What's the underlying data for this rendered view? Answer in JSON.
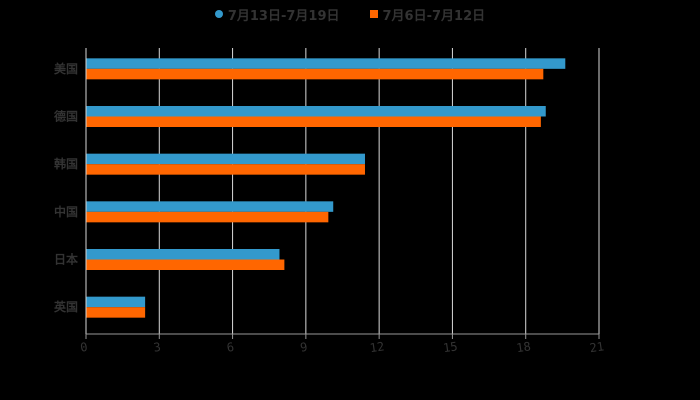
{
  "chart_data": {
    "type": "bar",
    "orientation": "horizontal",
    "title": "",
    "xlabel": "",
    "ylabel": "",
    "categories": [
      "美国",
      "德国",
      "韩国",
      "中国",
      "日本",
      "英国"
    ],
    "series": [
      {
        "name": "7月13日-7月19日",
        "color": "#3399cc",
        "values": [
          19.6,
          18.8,
          11.4,
          10.1,
          7.9,
          2.4
        ]
      },
      {
        "name": "7月6日-7月12日",
        "color": "#ff6600",
        "values": [
          18.7,
          18.6,
          11.4,
          9.9,
          8.1,
          2.4
        ]
      }
    ],
    "xlim": [
      0,
      21
    ],
    "xticks": [
      0,
      3,
      6,
      9,
      12,
      15,
      18,
      21
    ],
    "grid": true,
    "legend_position": "top"
  },
  "legend": {
    "items": [
      {
        "label": "7月13日-7月19日",
        "color": "#3399cc",
        "marker": "circle"
      },
      {
        "label": "7月6日-7月12日",
        "color": "#ff6600",
        "marker": "square"
      }
    ]
  }
}
